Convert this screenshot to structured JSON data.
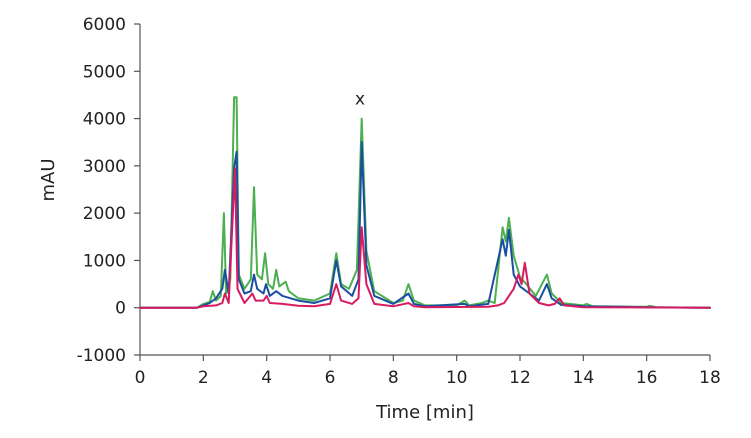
{
  "chart_data": {
    "type": "line",
    "xlabel": "Time [min]",
    "ylabel": "mAU",
    "xlim": [
      0,
      18
    ],
    "ylim": [
      -1000,
      6000
    ],
    "x_ticks": [
      0,
      2,
      4,
      6,
      8,
      10,
      12,
      14,
      16,
      18
    ],
    "y_ticks": [
      -1000,
      0,
      1000,
      2000,
      3000,
      4000,
      5000,
      6000
    ],
    "grid": false,
    "legend": "none",
    "annotations": [
      {
        "text": "x",
        "x": 6.95,
        "y": 4300
      }
    ],
    "series": [
      {
        "color": "#4caf50",
        "points": [
          [
            0,
            0
          ],
          [
            1.8,
            0
          ],
          [
            2.0,
            80
          ],
          [
            2.2,
            120
          ],
          [
            2.3,
            350
          ],
          [
            2.4,
            150
          ],
          [
            2.55,
            250
          ],
          [
            2.65,
            2000
          ],
          [
            2.72,
            300
          ],
          [
            2.85,
            600
          ],
          [
            2.97,
            4450
          ],
          [
            3.05,
            4450
          ],
          [
            3.12,
            700
          ],
          [
            3.3,
            400
          ],
          [
            3.5,
            600
          ],
          [
            3.6,
            2550
          ],
          [
            3.7,
            700
          ],
          [
            3.85,
            600
          ],
          [
            3.95,
            1150
          ],
          [
            4.05,
            500
          ],
          [
            4.2,
            400
          ],
          [
            4.3,
            800
          ],
          [
            4.4,
            450
          ],
          [
            4.6,
            550
          ],
          [
            4.7,
            350
          ],
          [
            5.0,
            200
          ],
          [
            5.5,
            150
          ],
          [
            6.0,
            300
          ],
          [
            6.2,
            1150
          ],
          [
            6.35,
            500
          ],
          [
            6.6,
            400
          ],
          [
            6.85,
            800
          ],
          [
            7.0,
            4000
          ],
          [
            7.15,
            1200
          ],
          [
            7.4,
            350
          ],
          [
            8.0,
            100
          ],
          [
            8.3,
            150
          ],
          [
            8.48,
            500
          ],
          [
            8.65,
            150
          ],
          [
            9.0,
            50
          ],
          [
            10.0,
            50
          ],
          [
            10.25,
            150
          ],
          [
            10.4,
            50
          ],
          [
            10.8,
            100
          ],
          [
            11.0,
            150
          ],
          [
            11.2,
            100
          ],
          [
            11.45,
            1700
          ],
          [
            11.55,
            1400
          ],
          [
            11.65,
            1900
          ],
          [
            11.8,
            1100
          ],
          [
            12.0,
            650
          ],
          [
            12.2,
            500
          ],
          [
            12.5,
            250
          ],
          [
            12.85,
            700
          ],
          [
            13.0,
            300
          ],
          [
            13.3,
            100
          ],
          [
            14.0,
            50
          ],
          [
            14.1,
            80
          ],
          [
            14.3,
            30
          ],
          [
            16.0,
            20
          ],
          [
            16.1,
            40
          ],
          [
            16.3,
            10
          ],
          [
            18.0,
            0
          ]
        ]
      },
      {
        "color": "#1a4fa0",
        "points": [
          [
            0,
            0
          ],
          [
            1.8,
            0
          ],
          [
            2.0,
            50
          ],
          [
            2.2,
            100
          ],
          [
            2.4,
            200
          ],
          [
            2.6,
            400
          ],
          [
            2.68,
            800
          ],
          [
            2.8,
            300
          ],
          [
            2.97,
            2950
          ],
          [
            3.05,
            3300
          ],
          [
            3.12,
            600
          ],
          [
            3.3,
            300
          ],
          [
            3.5,
            350
          ],
          [
            3.6,
            700
          ],
          [
            3.7,
            400
          ],
          [
            3.9,
            300
          ],
          [
            3.98,
            500
          ],
          [
            4.1,
            250
          ],
          [
            4.3,
            350
          ],
          [
            4.5,
            250
          ],
          [
            5.0,
            150
          ],
          [
            5.5,
            100
          ],
          [
            6.0,
            200
          ],
          [
            6.2,
            1000
          ],
          [
            6.35,
            450
          ],
          [
            6.7,
            250
          ],
          [
            6.9,
            600
          ],
          [
            7.0,
            3500
          ],
          [
            7.15,
            900
          ],
          [
            7.4,
            250
          ],
          [
            8.0,
            80
          ],
          [
            8.48,
            300
          ],
          [
            8.65,
            80
          ],
          [
            9.0,
            30
          ],
          [
            10.25,
            80
          ],
          [
            10.4,
            30
          ],
          [
            11.0,
            80
          ],
          [
            11.45,
            1450
          ],
          [
            11.55,
            1100
          ],
          [
            11.65,
            1650
          ],
          [
            11.8,
            700
          ],
          [
            12.0,
            450
          ],
          [
            12.3,
            300
          ],
          [
            12.6,
            150
          ],
          [
            12.85,
            500
          ],
          [
            13.0,
            200
          ],
          [
            13.3,
            60
          ],
          [
            14.0,
            30
          ],
          [
            16.0,
            10
          ],
          [
            18.0,
            0
          ]
        ]
      },
      {
        "color": "#d81b60",
        "points": [
          [
            0,
            0
          ],
          [
            1.8,
            0
          ],
          [
            2.0,
            30
          ],
          [
            2.4,
            50
          ],
          [
            2.6,
            100
          ],
          [
            2.68,
            300
          ],
          [
            2.8,
            100
          ],
          [
            3.0,
            2950
          ],
          [
            3.08,
            400
          ],
          [
            3.3,
            100
          ],
          [
            3.55,
            300
          ],
          [
            3.65,
            150
          ],
          [
            3.9,
            150
          ],
          [
            4.0,
            250
          ],
          [
            4.1,
            100
          ],
          [
            4.5,
            80
          ],
          [
            5.0,
            40
          ],
          [
            5.5,
            30
          ],
          [
            6.0,
            80
          ],
          [
            6.2,
            500
          ],
          [
            6.35,
            150
          ],
          [
            6.7,
            80
          ],
          [
            6.9,
            200
          ],
          [
            7.0,
            1700
          ],
          [
            7.15,
            500
          ],
          [
            7.4,
            80
          ],
          [
            8.0,
            30
          ],
          [
            8.48,
            100
          ],
          [
            8.65,
            30
          ],
          [
            9.0,
            10
          ],
          [
            11.0,
            20
          ],
          [
            11.3,
            50
          ],
          [
            11.5,
            100
          ],
          [
            11.8,
            400
          ],
          [
            11.95,
            700
          ],
          [
            12.05,
            500
          ],
          [
            12.15,
            950
          ],
          [
            12.3,
            300
          ],
          [
            12.6,
            100
          ],
          [
            12.9,
            50
          ],
          [
            13.1,
            80
          ],
          [
            13.25,
            200
          ],
          [
            13.4,
            50
          ],
          [
            14.0,
            10
          ],
          [
            18.0,
            0
          ]
        ]
      }
    ]
  }
}
